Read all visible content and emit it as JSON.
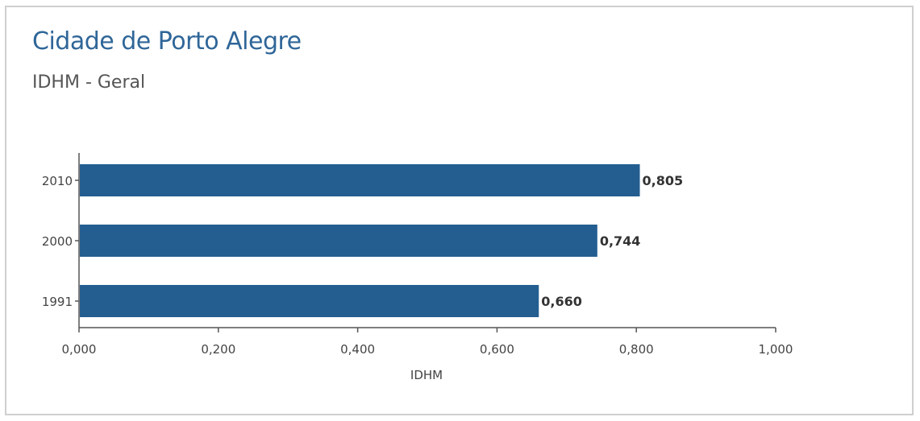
{
  "chart_data": {
    "type": "bar",
    "orientation": "horizontal",
    "title": "Cidade de Porto Alegre",
    "subtitle": "IDHM - Geral",
    "categories": [
      "2010",
      "2000",
      "1991"
    ],
    "values": [
      0.805,
      0.744,
      0.66
    ],
    "data_labels": [
      "0,805",
      "0,744",
      "0,660"
    ],
    "xlabel": "IDHM",
    "ylabel": "",
    "xlim": [
      0,
      1.0
    ],
    "xticks": [
      0,
      0.2,
      0.4,
      0.6,
      0.8,
      1.0
    ],
    "xtick_labels": [
      "0,000",
      "0,200",
      "0,400",
      "0,600",
      "0,800",
      "1,000"
    ],
    "grid": false,
    "legend": "none",
    "bar_color": "#245e90"
  }
}
